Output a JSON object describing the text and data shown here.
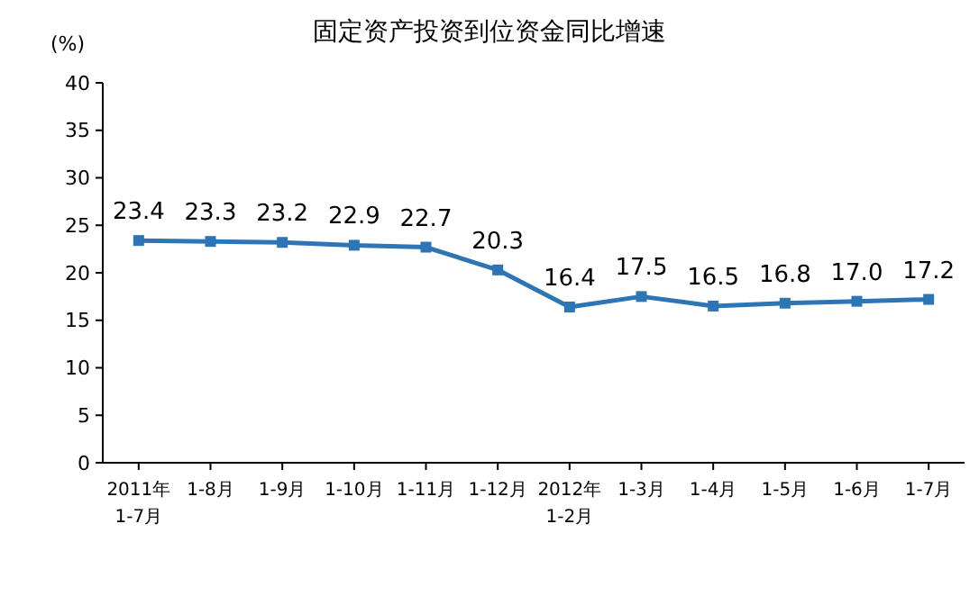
{
  "chart_data": {
    "type": "line",
    "title": "固定资产投资到位资金同比增速",
    "ylabel": "(%)",
    "categories": [
      "2011年\n1-7月",
      "1-8月",
      "1-9月",
      "1-10月",
      "1-11月",
      "1-12月",
      "2012年\n1-2月",
      "1-3月",
      "1-4月",
      "1-5月",
      "1-6月",
      "1-7月"
    ],
    "series": [
      {
        "color": "#2e75b6",
        "values": [
          23.4,
          23.3,
          23.2,
          22.9,
          22.7,
          20.3,
          16.4,
          17.5,
          16.5,
          16.8,
          17.0,
          17.2
        ],
        "value_labels": [
          "23.4",
          "23.3",
          "23.2",
          "22.9",
          "22.7",
          "20.3",
          "16.4",
          "17.5",
          "16.5",
          "16.8",
          "17.0",
          "17.2"
        ]
      }
    ],
    "ylim": [
      0,
      40
    ],
    "yticks": [
      0,
      5,
      10,
      15,
      20,
      25,
      30,
      35,
      40
    ],
    "marker": "square",
    "line_style": "solid",
    "grid": false
  }
}
